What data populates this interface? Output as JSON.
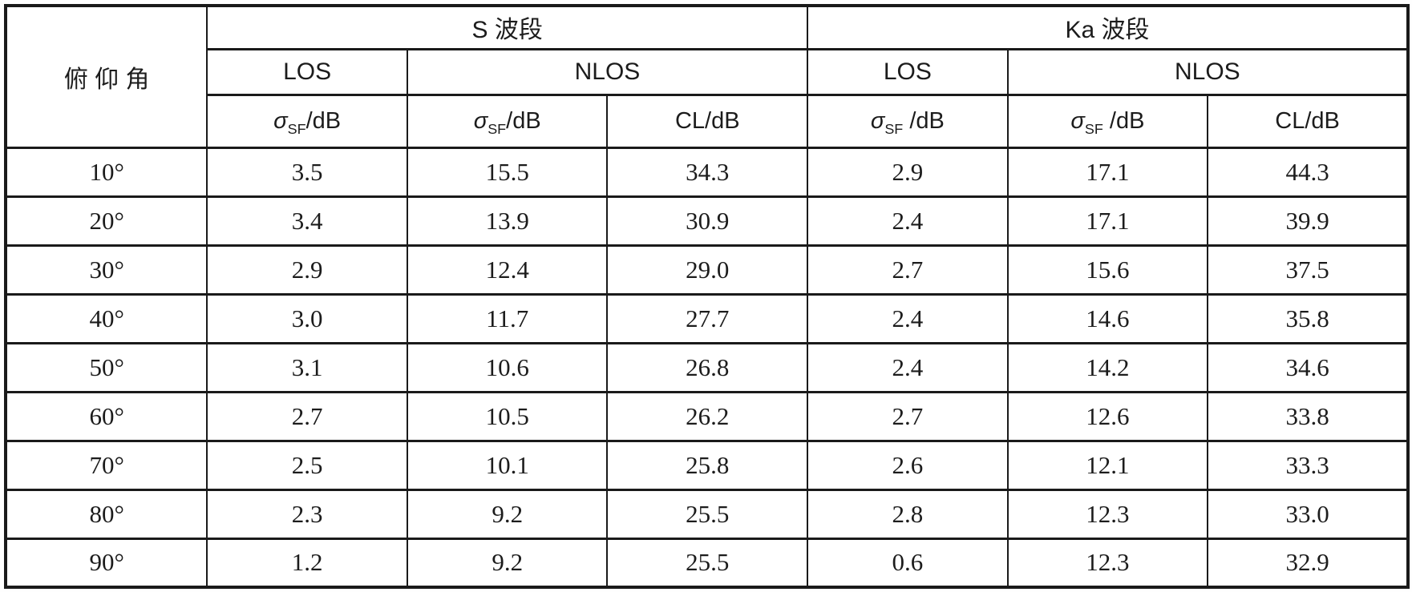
{
  "table": {
    "corner_label": "俯 仰 角",
    "bands": [
      "S 波段",
      "Ka 波段"
    ],
    "los_label": "LOS",
    "nlos_label": "NLOS",
    "sigma": {
      "symbol": "σ",
      "sub": "SF"
    },
    "col_headers": [
      {
        "kind": "sigma",
        "suffix": "/dB"
      },
      {
        "kind": "sigma",
        "suffix": "/dB"
      },
      {
        "kind": "cl",
        "label": "CL/dB"
      },
      {
        "kind": "sigma",
        "suffix": " /dB"
      },
      {
        "kind": "sigma",
        "suffix": " /dB"
      },
      {
        "kind": "cl",
        "label": "CL/dB"
      }
    ],
    "rows": [
      {
        "angle": "10°",
        "values": [
          "3.5",
          "15.5",
          "34.3",
          "2.9",
          "17.1",
          "44.3"
        ]
      },
      {
        "angle": "20°",
        "values": [
          "3.4",
          "13.9",
          "30.9",
          "2.4",
          "17.1",
          "39.9"
        ]
      },
      {
        "angle": "30°",
        "values": [
          "2.9",
          "12.4",
          "29.0",
          "2.7",
          "15.6",
          "37.5"
        ]
      },
      {
        "angle": "40°",
        "values": [
          "3.0",
          "11.7",
          "27.7",
          "2.4",
          "14.6",
          "35.8"
        ]
      },
      {
        "angle": "50°",
        "values": [
          "3.1",
          "10.6",
          "26.8",
          "2.4",
          "14.2",
          "34.6"
        ]
      },
      {
        "angle": "60°",
        "values": [
          "2.7",
          "10.5",
          "26.2",
          "2.7",
          "12.6",
          "33.8"
        ]
      },
      {
        "angle": "70°",
        "values": [
          "2.5",
          "10.1",
          "25.8",
          "2.6",
          "12.1",
          "33.3"
        ]
      },
      {
        "angle": "80°",
        "values": [
          "2.3",
          "9.2",
          "25.5",
          "2.8",
          "12.3",
          "33.0"
        ]
      },
      {
        "angle": "90°",
        "values": [
          "1.2",
          "9.2",
          "25.5",
          "0.6",
          "12.3",
          "32.9"
        ]
      }
    ],
    "text_color": "#1c1c1c",
    "border_color": "#1a1a1a"
  },
  "chart_data": {
    "type": "table",
    "title": "",
    "row_header": "俯 仰 角",
    "column_groups": [
      "S 波段 LOS",
      "S 波段 NLOS",
      "S 波段 NLOS",
      "Ka 波段 LOS",
      "Ka 波段 NLOS",
      "Ka 波段 NLOS"
    ],
    "columns": [
      "σSF/dB",
      "σSF/dB",
      "CL/dB",
      "σSF /dB",
      "σSF /dB",
      "CL/dB"
    ],
    "categories": [
      "10°",
      "20°",
      "30°",
      "40°",
      "50°",
      "60°",
      "70°",
      "80°",
      "90°"
    ],
    "series": [
      {
        "name": "S LOS σSF/dB",
        "values": [
          3.5,
          3.4,
          2.9,
          3.0,
          3.1,
          2.7,
          2.5,
          2.3,
          1.2
        ]
      },
      {
        "name": "S NLOS σSF/dB",
        "values": [
          15.5,
          13.9,
          12.4,
          11.7,
          10.6,
          10.5,
          10.1,
          9.2,
          9.2
        ]
      },
      {
        "name": "S NLOS CL/dB",
        "values": [
          34.3,
          30.9,
          29.0,
          27.7,
          26.8,
          26.2,
          25.8,
          25.5,
          25.5
        ]
      },
      {
        "name": "Ka LOS σSF/dB",
        "values": [
          2.9,
          2.4,
          2.7,
          2.4,
          2.4,
          2.7,
          2.6,
          2.8,
          0.6
        ]
      },
      {
        "name": "Ka NLOS σSF/dB",
        "values": [
          17.1,
          17.1,
          15.6,
          14.6,
          14.2,
          12.6,
          12.1,
          12.3,
          12.3
        ]
      },
      {
        "name": "Ka NLOS CL/dB",
        "values": [
          44.3,
          39.9,
          37.5,
          35.8,
          34.6,
          33.8,
          33.3,
          33.0,
          32.9
        ]
      }
    ]
  }
}
